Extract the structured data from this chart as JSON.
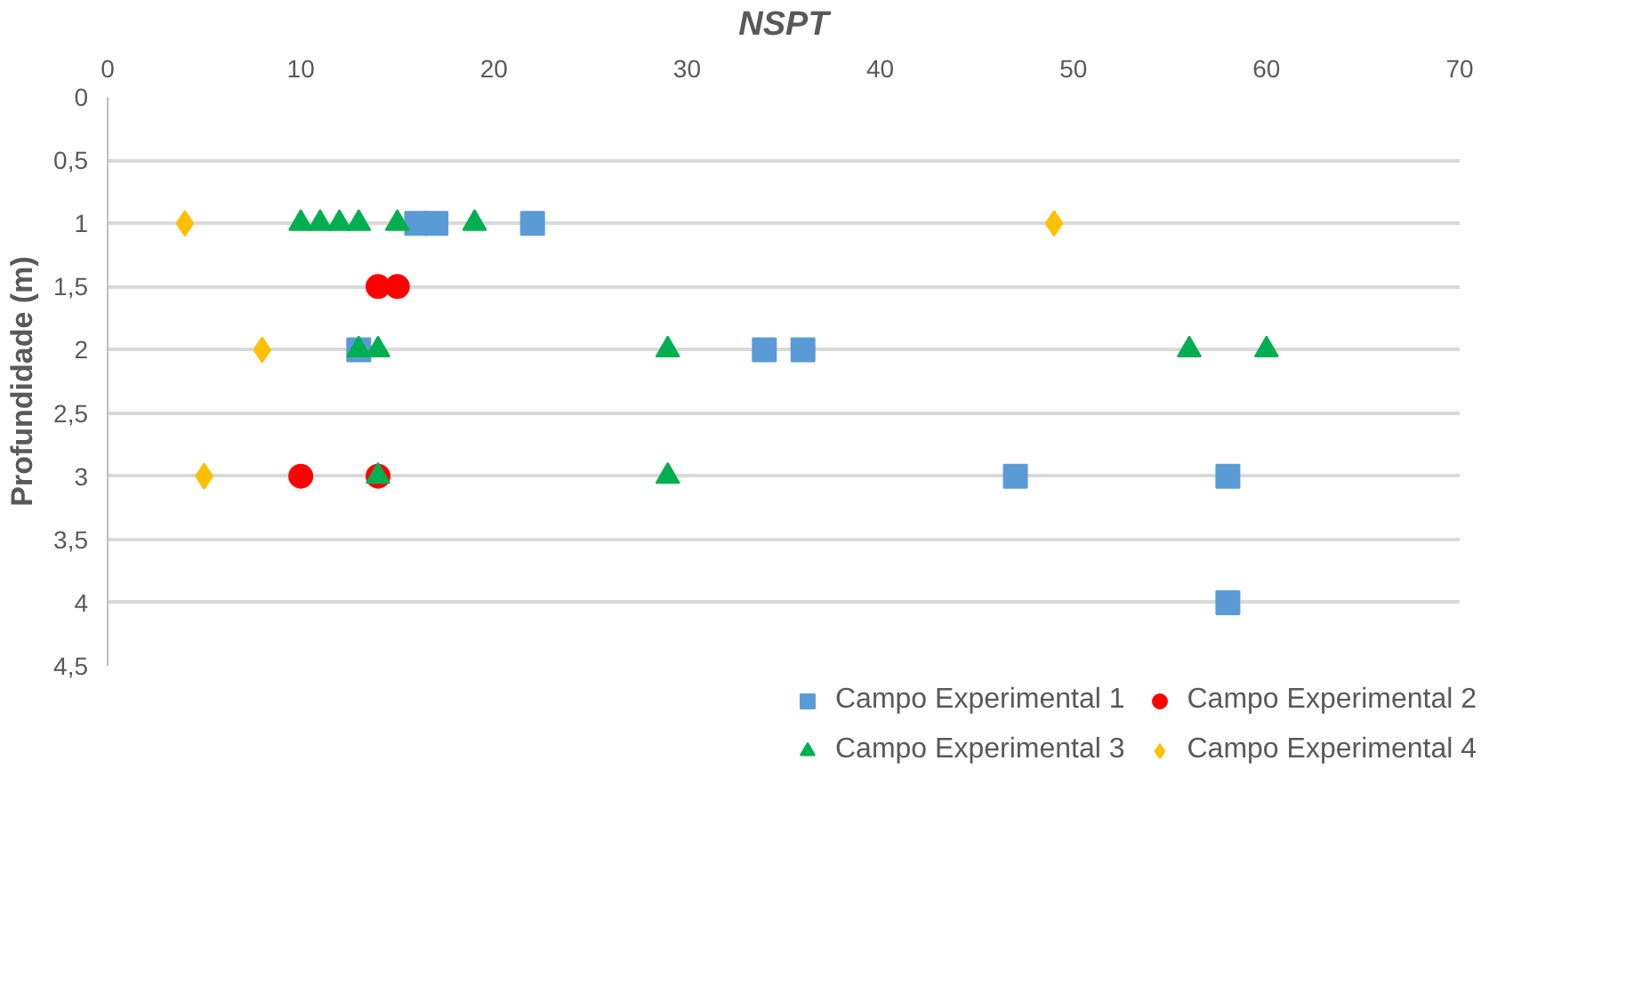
{
  "chart_data": {
    "type": "scatter",
    "xlabel": "NSPT",
    "ylabel": "Profundidade (m)",
    "xlim": [
      0,
      70
    ],
    "xticks": [
      0,
      10,
      20,
      30,
      40,
      50,
      60,
      70
    ],
    "ylim": [
      4.5,
      0
    ],
    "yticks": [
      0,
      {
        "value": 0.5,
        "label": "0,5"
      },
      1,
      {
        "value": 1.5,
        "label": "1,5"
      },
      2,
      {
        "value": 2.5,
        "label": "2,5"
      },
      3,
      {
        "value": 3.5,
        "label": "3,5"
      },
      4,
      {
        "value": 4.5,
        "label": "4,5"
      }
    ],
    "grid": "y",
    "legend": "bottom",
    "series": [
      {
        "name": "Campo Experimental 1",
        "color": "#5b9bd5",
        "marker": "square",
        "x": [
          16,
          17,
          22,
          13,
          34,
          36,
          47,
          58,
          58
        ],
        "values": [
          1,
          1,
          1,
          2,
          2,
          2,
          3,
          3,
          4
        ]
      },
      {
        "name": "Campo Experimental 2",
        "color": "#ff0000",
        "marker": "circle",
        "x": [
          14,
          15,
          10,
          14
        ],
        "values": [
          1.5,
          1.5,
          3,
          3
        ]
      },
      {
        "name": "Campo Experimental 3",
        "color": "#00b050",
        "marker": "triangle",
        "x": [
          10,
          11,
          12,
          13,
          15,
          19,
          13,
          14,
          29,
          56,
          60,
          14,
          29
        ],
        "values": [
          1,
          1,
          1,
          1,
          1,
          1,
          2,
          2,
          2,
          2,
          2,
          3,
          3
        ]
      },
      {
        "name": "Campo Experimental 4",
        "color": "#ffc000",
        "marker": "diamond",
        "x": [
          4,
          49,
          8,
          5
        ],
        "values": [
          1,
          1,
          2,
          3
        ]
      }
    ]
  }
}
